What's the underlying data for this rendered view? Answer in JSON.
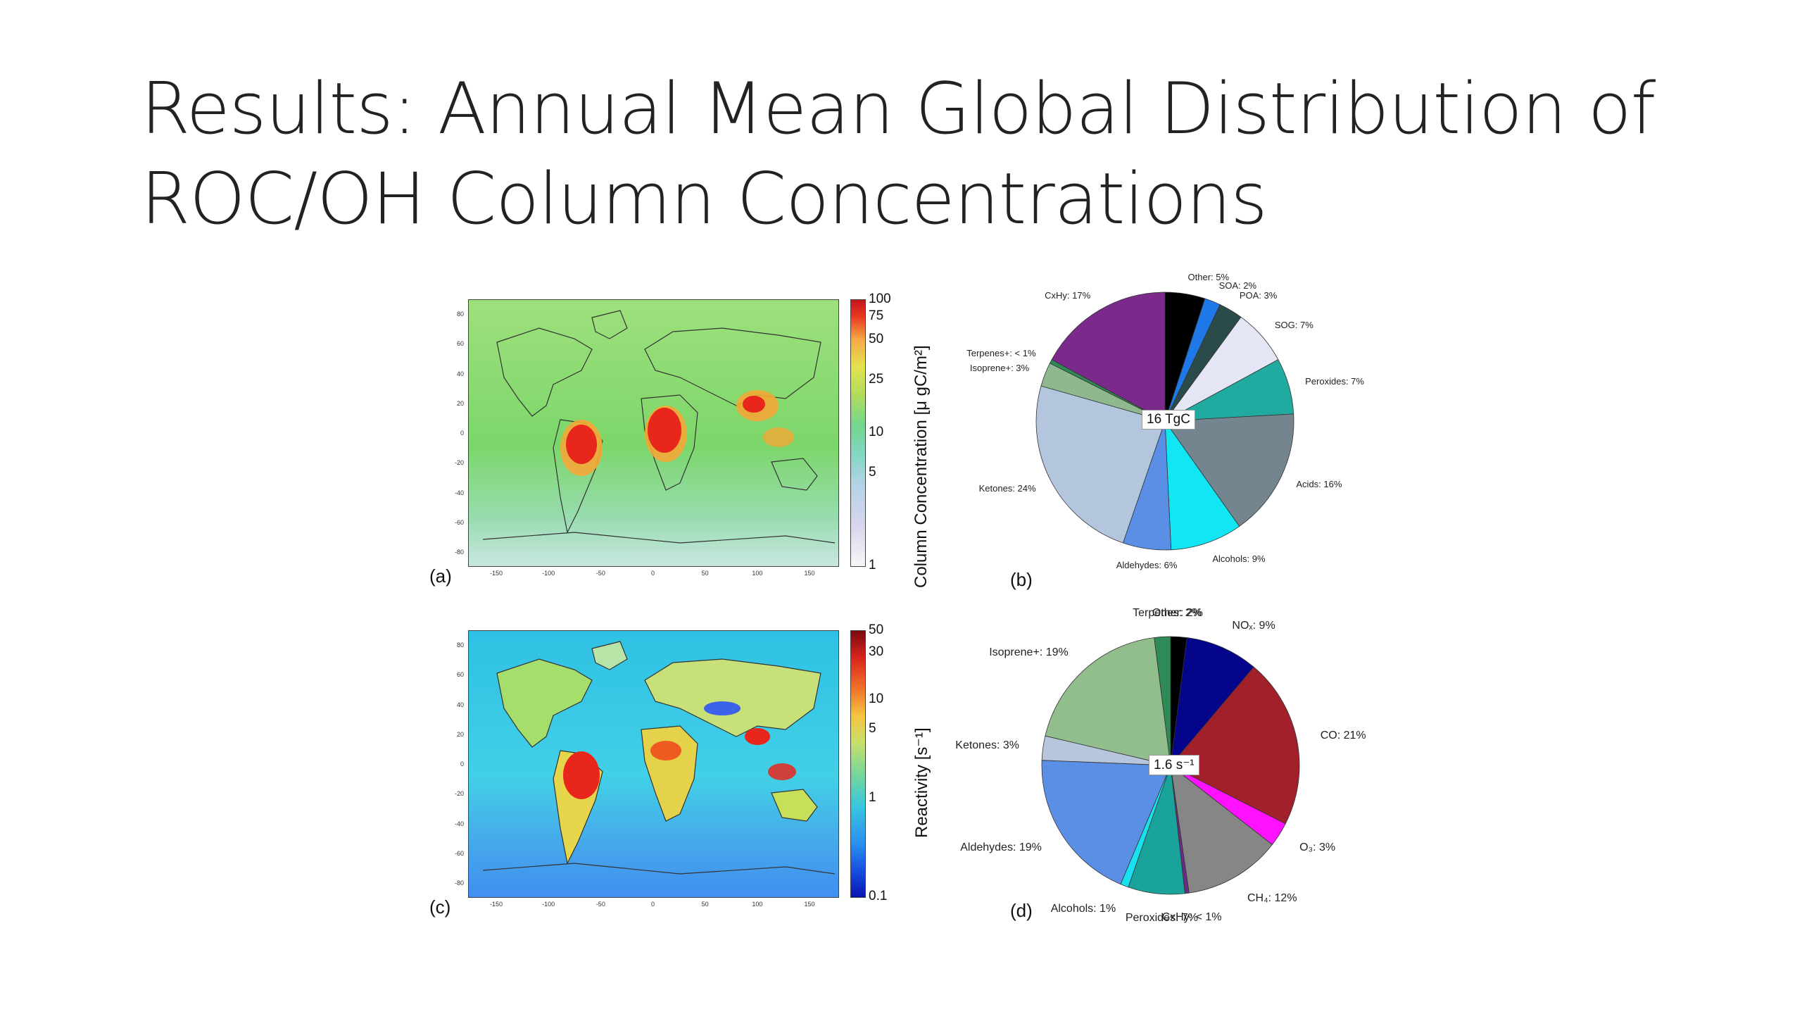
{
  "slide": {
    "title_line1": "Results: Annual Mean Global Distribution of",
    "title_line2": "ROC/OH Column Concentrations"
  },
  "chart_data": [
    {
      "id": "a",
      "type": "heatmap",
      "panel_label": "(a)",
      "xticks": [
        "-150",
        "-100",
        "-50",
        "0",
        "50",
        "100",
        "150"
      ],
      "yticks": [
        "80",
        "60",
        "40",
        "20",
        "0",
        "-20",
        "-40",
        "-60",
        "-80"
      ],
      "colorbar": {
        "label": "Column Concentration [μ gC/m²]",
        "scale": "log",
        "range": [
          1,
          100
        ],
        "ticks": [
          "100",
          "75",
          "50",
          "25",
          "10",
          "5",
          "1"
        ]
      },
      "colors": {
        "background": "#7fd66e",
        "ocean_south": "#a9dcc8",
        "hot": "#e8261c",
        "warm": "#f4a736"
      }
    },
    {
      "id": "b",
      "type": "pie",
      "panel_label": "(b)",
      "center_label": "16 TgC",
      "slices": [
        {
          "label": "Other: 5%",
          "value": 5,
          "color": "#000000"
        },
        {
          "label": "SOA: 2%",
          "value": 2,
          "color": "#1e78e8"
        },
        {
          "label": "POA: 3%",
          "value": 3,
          "color": "#2b4a4a"
        },
        {
          "label": "SOG: 7%",
          "value": 7,
          "color": "#e4e6f6"
        },
        {
          "label": "Peroxides: 7%",
          "value": 7,
          "color": "#20aaa0"
        },
        {
          "label": "Acids: 16%",
          "value": 16,
          "color": "#748590"
        },
        {
          "label": "Alcohols: 9%",
          "value": 9,
          "color": "#12e6f2"
        },
        {
          "label": "Aldehydes: 6%",
          "value": 6,
          "color": "#5b8fe6"
        },
        {
          "label": "Ketones: 24%",
          "value": 24,
          "color": "#b3c6de"
        },
        {
          "label": "Isoprene+: 3%",
          "value": 3,
          "color": "#8fb88f"
        },
        {
          "label": "Terpenes+: < 1%",
          "value": 0.5,
          "color": "#2e8b57"
        },
        {
          "label": "CxHy:  17%",
          "value": 17,
          "color": "#7b2a8c"
        }
      ]
    },
    {
      "id": "c",
      "type": "heatmap",
      "panel_label": "(c)",
      "xticks": [
        "-150",
        "-100",
        "-50",
        "0",
        "50",
        "100",
        "150"
      ],
      "yticks": [
        "80",
        "60",
        "40",
        "20",
        "0",
        "-20",
        "-40",
        "-60",
        "-80"
      ],
      "colorbar": {
        "label": "Reactivity [s⁻¹]",
        "scale": "log",
        "range": [
          0.1,
          50
        ],
        "ticks": [
          "50",
          "30",
          "10",
          "5",
          "1",
          "0.1"
        ]
      },
      "colors": {
        "background": "#3ccbe6",
        "ocean_south": "#4aa3e8",
        "hot": "#d81e1e",
        "warm": "#f3c63c"
      }
    },
    {
      "id": "d",
      "type": "pie",
      "panel_label": "(d)",
      "center_label": "1.6 s⁻¹",
      "slices": [
        {
          "label": "Other: 2%",
          "value": 2,
          "color": "#000000"
        },
        {
          "label": "NOₓ: 9%",
          "value": 9,
          "color": "#05058c"
        },
        {
          "label": "CO: 21%",
          "value": 21,
          "color": "#a2202c"
        },
        {
          "label": "O₃: 3%",
          "value": 3,
          "color": "#ff12ff"
        },
        {
          "label": "CH₄: 12%",
          "value": 12,
          "color": "#868686"
        },
        {
          "label": "CxHy: < 1%",
          "value": 0.5,
          "color": "#6a2c8a"
        },
        {
          "label": "Peroxides: 7%",
          "value": 7,
          "color": "#1aa39a"
        },
        {
          "label": "Alcohols: 1%",
          "value": 1,
          "color": "#16e2f0"
        },
        {
          "label": "Aldehydes: 19%",
          "value": 19,
          "color": "#5b8fe6"
        },
        {
          "label": "Ketones: 3%",
          "value": 3,
          "color": "#b7c6dc"
        },
        {
          "label": "Isoprene+: 19%",
          "value": 19,
          "color": "#92bd8c"
        },
        {
          "label": "Terpenes: 2%",
          "value": 2,
          "color": "#2e8b57"
        }
      ]
    }
  ]
}
